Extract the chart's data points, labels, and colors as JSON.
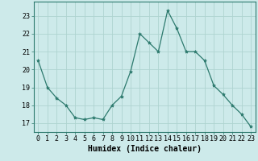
{
  "x": [
    0,
    1,
    2,
    3,
    4,
    5,
    6,
    7,
    8,
    9,
    10,
    11,
    12,
    13,
    14,
    15,
    16,
    17,
    18,
    19,
    20,
    21,
    22,
    23
  ],
  "y": [
    20.5,
    19.0,
    18.4,
    18.0,
    17.3,
    17.2,
    17.3,
    17.2,
    18.0,
    18.5,
    19.9,
    22.0,
    21.5,
    21.0,
    23.3,
    22.3,
    21.0,
    21.0,
    20.5,
    19.1,
    18.6,
    18.0,
    17.5,
    16.8
  ],
  "line_color": "#2d7a6e",
  "marker": "*",
  "marker_size": 3,
  "bg_color": "#cdeaea",
  "grid_color": "#afd4d0",
  "xlabel": "Humidex (Indice chaleur)",
  "ylim": [
    16.5,
    23.8
  ],
  "xlim": [
    -0.5,
    23.5
  ],
  "yticks": [
    17,
    18,
    19,
    20,
    21,
    22,
    23
  ],
  "xticks": [
    0,
    1,
    2,
    3,
    4,
    5,
    6,
    7,
    8,
    9,
    10,
    11,
    12,
    13,
    14,
    15,
    16,
    17,
    18,
    19,
    20,
    21,
    22,
    23
  ],
  "tick_fontsize": 6,
  "xlabel_fontsize": 7
}
